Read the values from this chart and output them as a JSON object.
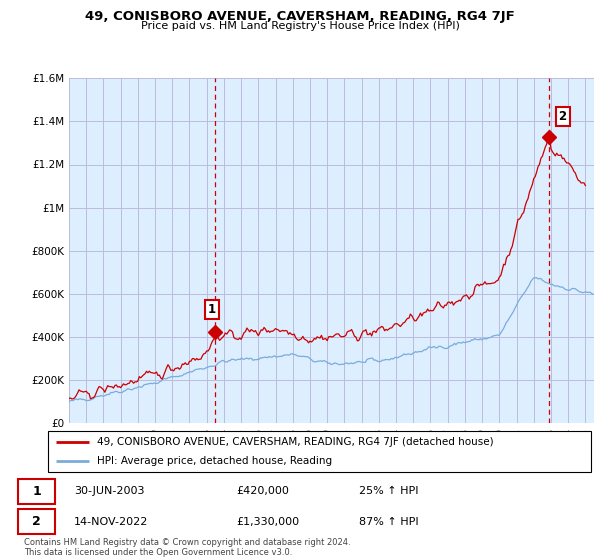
{
  "title1": "49, CONISBORO AVENUE, CAVERSHAM, READING, RG4 7JF",
  "title2": "Price paid vs. HM Land Registry's House Price Index (HPI)",
  "legend_label1": "49, CONISBORO AVENUE, CAVERSHAM, READING, RG4 7JF (detached house)",
  "legend_label2": "HPI: Average price, detached house, Reading",
  "annotation1_num": "1",
  "annotation1_date": "30-JUN-2003",
  "annotation1_price": "£420,000",
  "annotation1_hpi": "25% ↑ HPI",
  "annotation2_num": "2",
  "annotation2_date": "14-NOV-2022",
  "annotation2_price": "£1,330,000",
  "annotation2_hpi": "87% ↑ HPI",
  "footer": "Contains HM Land Registry data © Crown copyright and database right 2024.\nThis data is licensed under the Open Government Licence v3.0.",
  "red_color": "#cc0000",
  "blue_color": "#7aacdb",
  "chart_bg": "#ddeeff",
  "grid_color": "#bbbbdd",
  "ylim": [
    0,
    1600000
  ],
  "yticks": [
    0,
    200000,
    400000,
    600000,
    800000,
    1000000,
    1200000,
    1400000,
    1600000
  ],
  "ytick_labels": [
    "£0",
    "£200K",
    "£400K",
    "£600K",
    "£800K",
    "£1M",
    "£1.2M",
    "£1.4M",
    "£1.6M"
  ],
  "xmin": 1995.0,
  "xmax": 2025.5,
  "point1_x": 2003.5,
  "point1_y": 420000,
  "point2_x": 2022.88,
  "point2_y": 1330000,
  "vline1_x": 2003.5,
  "vline2_x": 2022.88
}
